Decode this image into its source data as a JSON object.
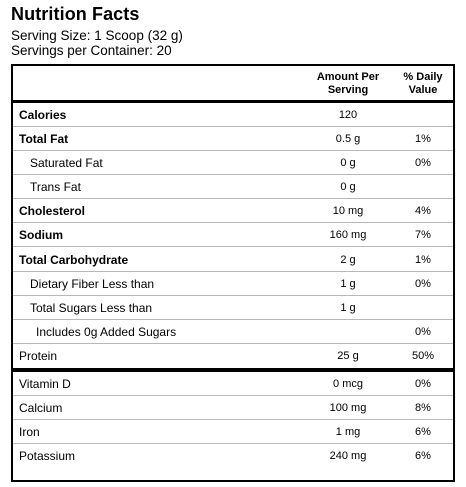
{
  "label": {
    "title": "Nutrition Facts",
    "serving_size": "Serving Size: 1 Scoop (32 g)",
    "servings_per_container": "Servings per Container: 20"
  },
  "table": {
    "header_amount_line1": "Amount Per",
    "header_amount_line2": "Serving",
    "header_dv_line1": "% Daily",
    "header_dv_line2": "Value",
    "rows": [
      {
        "label": "Calories",
        "amount": "120",
        "dv": ""
      },
      {
        "label": "Total Fat",
        "amount": "0.5 g",
        "dv": "1%"
      },
      {
        "label": "Saturated Fat",
        "amount": "0 g",
        "dv": "0%"
      },
      {
        "label": "Trans Fat",
        "amount": "0 g",
        "dv": ""
      },
      {
        "label": "Cholesterol",
        "amount": "10 mg",
        "dv": "4%"
      },
      {
        "label": "Sodium",
        "amount": "160 mg",
        "dv": "7%"
      },
      {
        "label": "Total Carbohydrate",
        "amount": "2 g",
        "dv": "1%"
      },
      {
        "label": "Dietary Fiber Less than",
        "amount": "1 g",
        "dv": "0%"
      },
      {
        "label": "Total Sugars Less than",
        "amount": "1 g",
        "dv": ""
      },
      {
        "label": "Includes 0g Added Sugars",
        "amount": "",
        "dv": "0%"
      },
      {
        "label": "Protein",
        "amount": "25 g",
        "dv": "50%"
      },
      {
        "label": "Vitamin D",
        "amount": "0 mcg",
        "dv": "0%"
      },
      {
        "label": "Calcium",
        "amount": "100 mg",
        "dv": "8%"
      },
      {
        "label": "Iron",
        "amount": "1 mg",
        "dv": "6%"
      },
      {
        "label": "Potassium",
        "amount": "240 mg",
        "dv": "6%"
      }
    ]
  }
}
